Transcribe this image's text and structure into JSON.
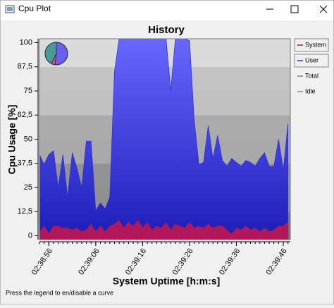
{
  "window": {
    "title": "Cpu Plot"
  },
  "status_text": "Press the legend to en/disable a curve",
  "chart_data": {
    "type": "area",
    "title": "History",
    "x_label": "System Uptime [h:m:s]",
    "y_label": "Cpu Usage [%]",
    "x": [
      9534,
      9535,
      9536,
      9537,
      9538,
      9539,
      9540,
      9541,
      9542,
      9543,
      9544,
      9545,
      9546,
      9547,
      9548,
      9549,
      9550,
      9551,
      9552,
      9553,
      9554,
      9555,
      9556,
      9557,
      9558,
      9559,
      9560,
      9561,
      9562,
      9563,
      9564,
      9565,
      9566,
      9567,
      9568,
      9569,
      9570,
      9571,
      9572,
      9573,
      9574,
      9575,
      9576,
      9577,
      9578,
      9579,
      9580,
      9581,
      9582,
      9583,
      9584,
      9585,
      9586,
      9587
    ],
    "xlim": [
      9534,
      9587.5
    ],
    "xticks": [
      {
        "value": 9536,
        "label": "02:38:56"
      },
      {
        "value": 9546,
        "label": "02:39:06"
      },
      {
        "value": 9556,
        "label": "02:39:16"
      },
      {
        "value": 9566,
        "label": "02:39:26"
      },
      {
        "value": 9576,
        "label": "02:39:36"
      },
      {
        "value": 9586,
        "label": "02:39:46"
      }
    ],
    "ylim": [
      -2,
      102
    ],
    "yticks": [
      0,
      {
        "value": 12.5,
        "label": "12,5"
      },
      25,
      {
        "value": 37.5,
        "label": "37,5"
      },
      50,
      {
        "value": 62.5,
        "label": "62,5"
      },
      75,
      {
        "value": 87.5,
        "label": "87,5"
      },
      100
    ],
    "series": [
      {
        "name": "System",
        "color": "#b0185a",
        "visible": true,
        "values": [
          2,
          5,
          1,
          5,
          5,
          4,
          4,
          3,
          4,
          2,
          3,
          6,
          2,
          5,
          2,
          5,
          6,
          8,
          4,
          7,
          5,
          8,
          4,
          7,
          3,
          5,
          4,
          7,
          3,
          6,
          5,
          4,
          7,
          4,
          5,
          4,
          6,
          4,
          5,
          5,
          3,
          1,
          4,
          3,
          5,
          3,
          4,
          2,
          4,
          2,
          3,
          5,
          5,
          7
        ]
      },
      {
        "name": "User",
        "color": "#3030e0",
        "visible": true,
        "values": [
          42,
          37,
          42,
          44,
          25,
          42,
          20,
          43,
          35,
          25,
          49,
          49,
          13,
          17,
          14,
          20,
          85,
          102,
          102,
          102,
          102,
          102,
          102,
          102,
          102,
          102,
          102,
          102,
          75,
          102,
          102,
          102,
          101,
          60,
          37,
          38,
          57,
          40,
          52,
          39,
          36,
          40,
          38,
          36,
          39,
          38,
          36,
          40,
          43,
          36,
          36,
          50,
          34,
          58
        ]
      },
      {
        "name": "Total",
        "color": "#808080",
        "visible": false
      },
      {
        "name": "Idle",
        "color": "#70a070",
        "visible": false
      }
    ]
  }
}
